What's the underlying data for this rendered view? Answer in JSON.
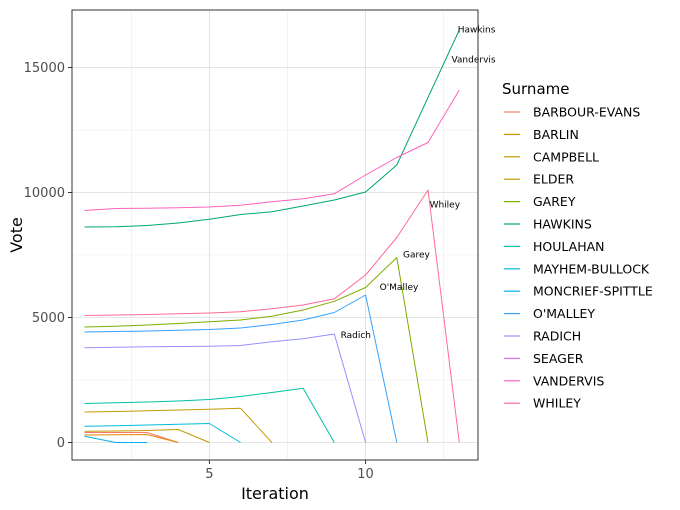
{
  "chart_data": {
    "type": "line",
    "xlabel": "Iteration",
    "ylabel": "Vote",
    "xlim": [
      0.6,
      13.6
    ],
    "ylim": [
      -700,
      17300
    ],
    "xticks": [
      5,
      10
    ],
    "yticks": [
      0,
      5000,
      10000,
      15000
    ],
    "grid": true,
    "legend": {
      "title": "Surname",
      "position": "right"
    },
    "series": [
      {
        "name": "BARBOUR-EVANS",
        "color": "#F8766D",
        "x": [
          1,
          2,
          3,
          4
        ],
        "values": [
          400,
          400,
          400,
          0
        ]
      },
      {
        "name": "BARLIN",
        "color": "#E38900",
        "x": [
          1,
          2,
          3,
          4
        ],
        "values": [
          300,
          310,
          320,
          0
        ]
      },
      {
        "name": "CAMPBELL",
        "color": "#C49A00",
        "x": [
          1,
          2,
          3,
          4,
          5
        ],
        "values": [
          450,
          460,
          480,
          520,
          0
        ]
      },
      {
        "name": "ELDER",
        "color": "#C49A00",
        "x": [
          1,
          2,
          3,
          4,
          5,
          6,
          7
        ],
        "values": [
          1220,
          1240,
          1270,
          1300,
          1330,
          1370,
          0
        ]
      },
      {
        "name": "GAREY",
        "color": "#7CAE00",
        "x": [
          1,
          2,
          3,
          4,
          5,
          6,
          7,
          8,
          9,
          10,
          11,
          12
        ],
        "values": [
          4620,
          4650,
          4700,
          4760,
          4830,
          4900,
          5050,
          5300,
          5650,
          6200,
          7400,
          0
        ]
      },
      {
        "name": "HAWKINS",
        "color": "#00A76F",
        "x": [
          1,
          2,
          3,
          4,
          5,
          6,
          7,
          8,
          9,
          10,
          11,
          12,
          13
        ],
        "values": [
          8620,
          8630,
          8680,
          8780,
          8930,
          9120,
          9230,
          9460,
          9700,
          10020,
          11100,
          13800,
          16500
        ]
      },
      {
        "name": "HOULAHAN",
        "color": "#00BFA4",
        "x": [
          1,
          2,
          3,
          4,
          5,
          6,
          7,
          8,
          9
        ],
        "values": [
          1560,
          1590,
          1620,
          1660,
          1720,
          1840,
          2000,
          2170,
          0
        ]
      },
      {
        "name": "MAYHEM-BULLOCK",
        "color": "#00BCD8",
        "x": [
          1,
          2,
          3,
          4,
          5,
          6
        ],
        "values": [
          650,
          670,
          700,
          730,
          760,
          0
        ]
      },
      {
        "name": "MONCRIEF-SPITTLE",
        "color": "#00B0F6",
        "x": [
          1,
          2,
          3
        ],
        "values": [
          250,
          0,
          0
        ]
      },
      {
        "name": "O'MALLEY",
        "color": "#35A2FF",
        "x": [
          1,
          2,
          3,
          4,
          5,
          6,
          7,
          8,
          9,
          10,
          11
        ],
        "values": [
          4420,
          4440,
          4460,
          4490,
          4520,
          4580,
          4720,
          4900,
          5200,
          5900,
          0
        ]
      },
      {
        "name": "RADICH",
        "color": "#9590FF",
        "x": [
          1,
          2,
          3,
          4,
          5,
          6,
          7,
          8,
          9,
          10
        ],
        "values": [
          3790,
          3810,
          3830,
          3840,
          3850,
          3880,
          4030,
          4150,
          4340,
          0
        ]
      },
      {
        "name": "SEAGER",
        "color": "#E76BF3",
        "x": [],
        "values": []
      },
      {
        "name": "VANDERVIS",
        "color": "#FF62BC",
        "x": [
          1,
          2,
          3,
          4,
          5,
          6,
          7,
          8,
          9,
          10,
          11,
          12,
          13
        ],
        "values": [
          9280,
          9360,
          9370,
          9390,
          9420,
          9490,
          9630,
          9750,
          9950,
          10700,
          11400,
          12000,
          14100
        ]
      },
      {
        "name": "WHILEY",
        "color": "#FF6C91",
        "x": [
          1,
          2,
          3,
          4,
          5,
          6,
          7,
          8,
          9,
          10,
          11,
          12,
          13
        ],
        "values": [
          5080,
          5100,
          5120,
          5150,
          5180,
          5230,
          5350,
          5500,
          5750,
          6700,
          8200,
          10100,
          0
        ]
      }
    ],
    "annotations": [
      {
        "text": "Hawkins",
        "x": 12.95,
        "y": 16400
      },
      {
        "text": "Vandervis",
        "x": 12.75,
        "y": 15200
      },
      {
        "text": "Whiley",
        "x": 12.05,
        "y": 9400
      },
      {
        "text": "Garey",
        "x": 11.2,
        "y": 7400
      },
      {
        "text": "O'Malley",
        "x": 10.45,
        "y": 6100
      },
      {
        "text": "Radich",
        "x": 9.2,
        "y": 4180
      }
    ]
  }
}
